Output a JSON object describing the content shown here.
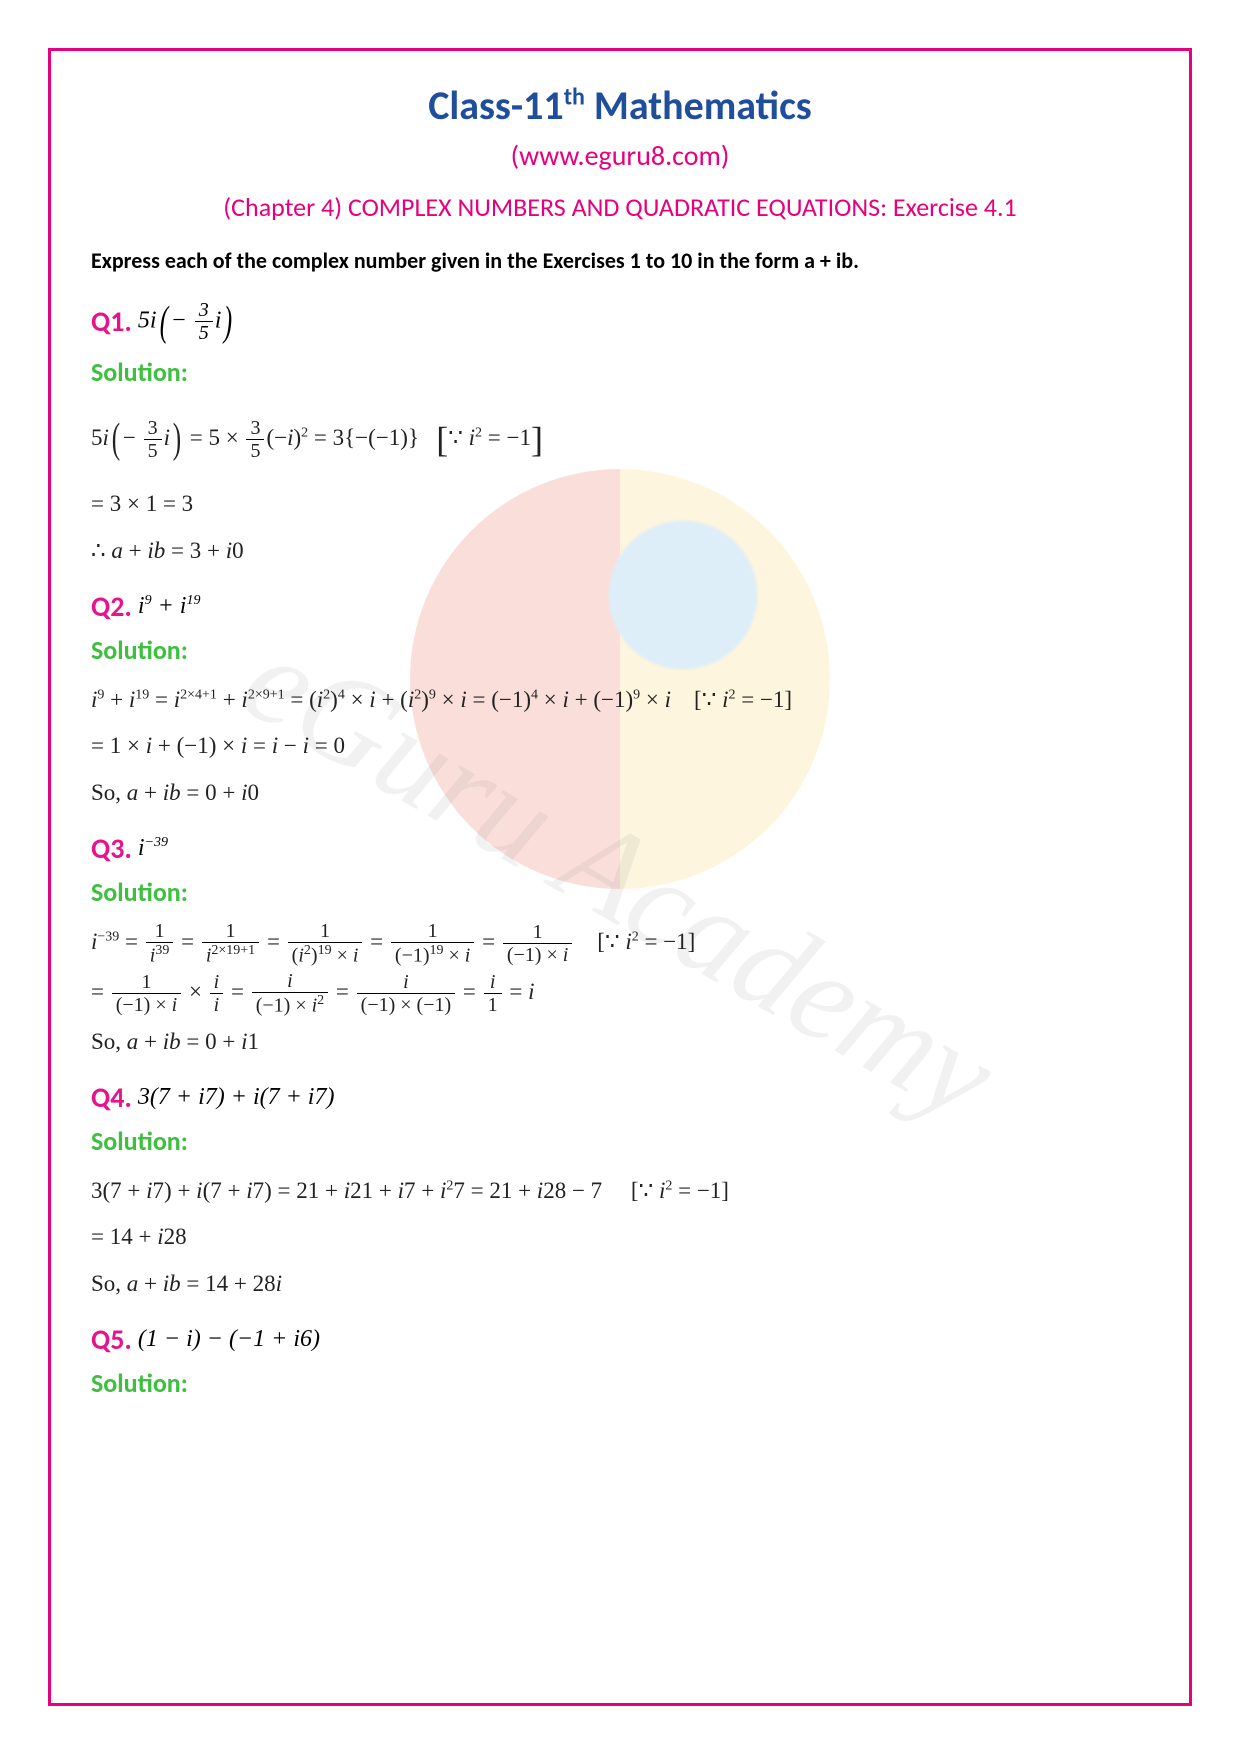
{
  "header": {
    "title_pre": "Class-11",
    "title_sup": "th",
    "title_post": " Mathematics",
    "website": "(www.eguru8.com)",
    "chapter": "(Chapter 4) COMPLEX NUMBERS AND QUADRATIC EQUATIONS: Exercise 4.1"
  },
  "instruction": "Express each of the complex number given in the Exercises 1 to 10 in the form a + ib.",
  "solution_label": "Solution:",
  "watermark_text": "eGuru Academy",
  "colors": {
    "border": "#e6007e",
    "title": "#1f4e9c",
    "website": "#e6007e",
    "chapter": "#e6007e",
    "q_label": "#e6148c",
    "solution": "#3fbf3f",
    "body_text": "#000000"
  },
  "questions": [
    {
      "label": "Q1.",
      "expr_html": "5<i>i</i><span class='paren-big'>(</span>− <span class='frac'><span class='num'>3</span><span class='den'>5</span></span><i>i</i><span class='paren-big'>)</span>",
      "solution_lines": [
        "5<i>i</i><span class='paren-big'>(</span>− <span class='frac'><span class='num'>3</span><span class='den'>5</span></span><i>i</i><span class='paren-big'>)</span> = 5 × <span class='frac'><span class='num'>3</span><span class='den'>5</span></span>(−<i>i</i>)<sup>2</sup> = 3{−(−1)} &nbsp; <span class='bracket-big'>[</span>∵ <i>i</i><sup>2</sup> = −1<span class='bracket-big'>]</span>",
        "= 3 × 1 = 3",
        "∴ <i>a</i> + <i>ib</i> = 3 + <i>i</i>0"
      ]
    },
    {
      "label": "Q2.",
      "expr_html": "<i>i</i><sup>9</sup> + <i>i</i><sup>19</sup>",
      "solution_lines": [
        "<i>i</i><sup>9</sup> + <i>i</i><sup>19</sup> = <i>i</i><sup>2×4+1</sup> + <i>i</i><sup>2×9+1</sup> = (<i>i</i><sup>2</sup>)<sup>4</sup> × <i>i</i> + (<i>i</i><sup>2</sup>)<sup>9</sup> × <i>i</i> = (−1)<sup>4</sup> × <i>i</i> + (−1)<sup>9</sup> × <i>i</i> &nbsp;&nbsp; [∵ <i>i</i><sup>2</sup> = −1]",
        "= 1 × <i>i</i> + (−1) × <i>i</i> = <i>i</i> − <i>i</i> = 0",
        "So, <i>a</i> + <i>ib</i> = 0 + <i>i</i>0"
      ]
    },
    {
      "label": "Q3.",
      "expr_html": "<i>i</i><sup>−39</sup>",
      "solution_lines": [
        "<i>i</i><sup>−39</sup> = <span class='frac'><span class='num'>1</span><span class='den'><i>i</i><sup>39</sup></span></span> = <span class='frac'><span class='num'>1</span><span class='den'><i>i</i><sup>2×19+1</sup></span></span> = <span class='frac'><span class='num'>1</span><span class='den'>(<i>i</i><sup>2</sup>)<sup>19</sup> × <i>i</i></span></span> = <span class='frac'><span class='num'>1</span><span class='den'>(−1)<sup>19</sup> × <i>i</i></span></span> = <span class='frac'><span class='num'>1</span><span class='den'>(−1) × <i>i</i></span></span> &nbsp;&nbsp; [∵ <i>i</i><sup>2</sup> = −1]",
        "= <span class='frac'><span class='num'>1</span><span class='den'>(−1) × <i>i</i></span></span> × <span class='frac'><span class='num'><i>i</i></span><span class='den'><i>i</i></span></span> = <span class='frac'><span class='num'><i>i</i></span><span class='den'>(−1) × <i>i</i><sup>2</sup></span></span> = <span class='frac'><span class='num'><i>i</i></span><span class='den'>(−1) × (−1)</span></span> = <span class='frac'><span class='num'><i>i</i></span><span class='den'>1</span></span> = <i>i</i>",
        "So, <i>a</i> + <i>ib</i> = 0 + <i>i</i>1"
      ]
    },
    {
      "label": "Q4.",
      "expr_html": "3(7 + <i>i</i>7) + <i>i</i>(7 + <i>i</i>7)",
      "solution_lines": [
        "3(7 + <i>i</i>7) + <i>i</i>(7 + <i>i</i>7) = 21 + <i>i</i>21 + <i>i</i>7 + <i>i</i><sup>2</sup>7 = 21 + <i>i</i>28 − 7 &nbsp;&nbsp;&nbsp; [∵ <i>i</i><sup>2</sup> = −1]",
        "= 14 + <i>i</i>28",
        "So, <i>a</i> + <i>ib</i> = 14 + 28<i>i</i>"
      ]
    },
    {
      "label": "Q5.",
      "expr_html": "(1 − <i>i</i>) − (−1 + <i>i</i>6)",
      "solution_lines": []
    }
  ]
}
